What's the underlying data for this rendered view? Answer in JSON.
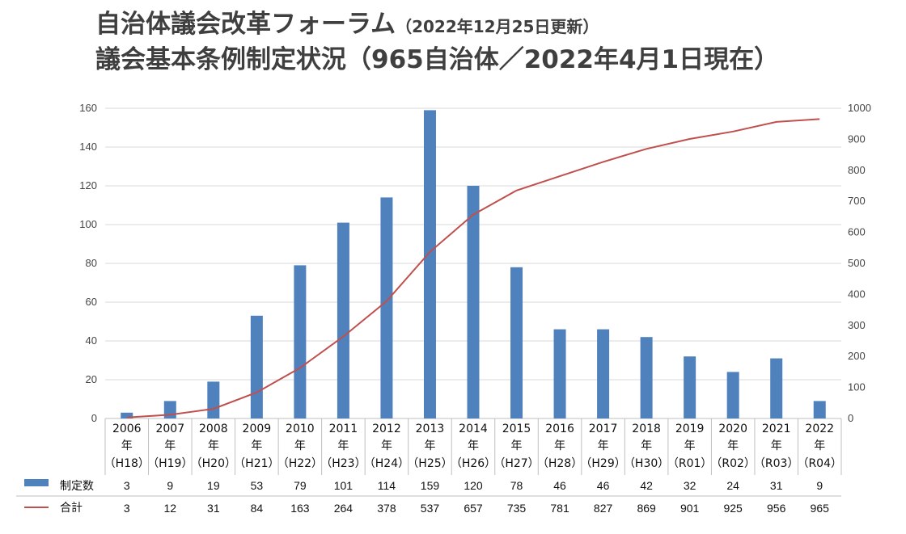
{
  "title": {
    "line1": "自治体議会改革フォーラム",
    "line1_sub": "（2022年12月25日更新）",
    "line2": "議会基本条例制定状況（965自治体／2022年4月1日現在）"
  },
  "chart_data": {
    "type": "bar+line",
    "categories": [
      {
        "year": "2006",
        "unit": "年",
        "era": "（H18）"
      },
      {
        "year": "2007",
        "unit": "年",
        "era": "（H19）"
      },
      {
        "year": "2008",
        "unit": "年",
        "era": "（H20）"
      },
      {
        "year": "2009",
        "unit": "年",
        "era": "（H21）"
      },
      {
        "year": "2010",
        "unit": "年",
        "era": "（H22）"
      },
      {
        "year": "2011",
        "unit": "年",
        "era": "（H23）"
      },
      {
        "year": "2012",
        "unit": "年",
        "era": "（H24）"
      },
      {
        "year": "2013",
        "unit": "年",
        "era": "（H25）"
      },
      {
        "year": "2014",
        "unit": "年",
        "era": "（H26）"
      },
      {
        "year": "2015",
        "unit": "年",
        "era": "（H27）"
      },
      {
        "year": "2016",
        "unit": "年",
        "era": "（H28）"
      },
      {
        "year": "2017",
        "unit": "年",
        "era": "（H29）"
      },
      {
        "year": "2018",
        "unit": "年",
        "era": "（H30）"
      },
      {
        "year": "2019",
        "unit": "年",
        "era": "（R01）"
      },
      {
        "year": "2020",
        "unit": "年",
        "era": "（R02）"
      },
      {
        "year": "2021",
        "unit": "年",
        "era": "（R03）"
      },
      {
        "year": "2022",
        "unit": "年",
        "era": "（R04）"
      }
    ],
    "series": [
      {
        "name": "制定数",
        "kind": "bar",
        "axis": "left",
        "color": "#4f81bd",
        "values": [
          3,
          9,
          19,
          53,
          79,
          101,
          114,
          159,
          120,
          78,
          46,
          46,
          42,
          32,
          24,
          31,
          9
        ]
      },
      {
        "name": "合計",
        "kind": "line",
        "axis": "right",
        "color": "#c0504d",
        "values": [
          3,
          12,
          31,
          84,
          163,
          264,
          378,
          537,
          657,
          735,
          781,
          827,
          869,
          901,
          925,
          956,
          965
        ]
      }
    ],
    "y_left": {
      "min": 0,
      "max": 160,
      "step": 20,
      "ticks": [
        "0",
        "20",
        "40",
        "60",
        "80",
        "100",
        "120",
        "140",
        "160"
      ]
    },
    "y_right": {
      "min": 0,
      "max": 1000,
      "step": 100,
      "ticks": [
        "0",
        "100",
        "200",
        "300",
        "400",
        "500",
        "600",
        "700",
        "800",
        "900",
        "1000"
      ]
    },
    "grid": true,
    "legend": "data-table"
  },
  "colors": {
    "bar": "#4f81bd",
    "line": "#c0504d",
    "grid": "#d9d9d9",
    "title": "#3f3f3f"
  }
}
